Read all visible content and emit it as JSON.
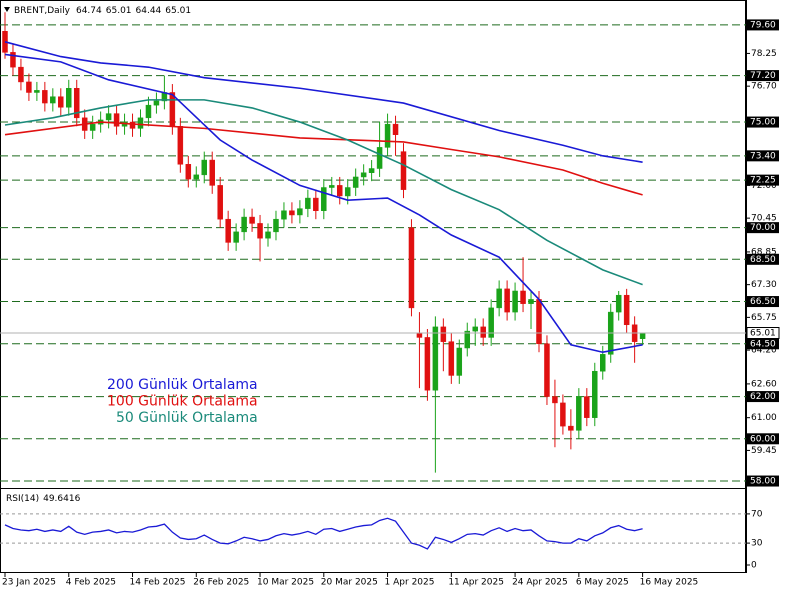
{
  "chart_data": [
    {
      "type": "candlestick",
      "title": "BRENT,Daily",
      "categories": [
        "23 Jan 2025",
        null,
        null,
        null,
        null,
        null,
        null,
        null,
        "4 Feb 2025",
        null,
        null,
        null,
        null,
        null,
        null,
        null,
        "14 Feb 2025",
        null,
        null,
        null,
        null,
        null,
        null,
        null,
        "26 Feb 2025",
        null,
        null,
        null,
        null,
        null,
        null,
        null,
        "10 Mar 2025",
        null,
        null,
        null,
        null,
        null,
        null,
        null,
        "20 Mar 2025",
        null,
        null,
        null,
        null,
        null,
        null,
        null,
        "1 Apr 2025",
        null,
        null,
        null,
        null,
        null,
        null,
        null,
        "11 Apr 2025",
        null,
        null,
        null,
        null,
        null,
        null,
        null,
        "24 Apr 2025",
        null,
        null,
        null,
        null,
        null,
        null,
        null,
        "6 May 2025",
        null,
        null,
        null,
        null,
        null,
        null,
        null,
        "16 May 2025"
      ],
      "open": [
        79.3,
        78.3,
        77.6,
        76.9,
        76.4,
        76.5,
        75.9,
        76.2,
        75.7,
        76.6,
        75.2,
        74.6,
        74.9,
        75.1,
        75.4,
        74.8,
        75.0,
        74.7,
        75.2,
        75.8,
        76.0,
        76.4,
        74.8,
        73.0,
        72.3,
        72.5,
        73.2,
        72.0,
        70.4,
        69.3,
        69.8,
        70.5,
        70.2,
        69.5,
        69.8,
        70.4,
        70.8,
        70.6,
        70.9,
        71.4,
        70.8,
        71.9,
        72.0,
        71.5,
        71.9,
        72.4,
        72.6,
        72.8,
        73.8,
        74.9,
        73.6,
        70.0,
        65.0,
        64.8,
        62.3,
        65.3,
        64.6,
        63.0,
        64.3,
        65.1,
        65.3,
        64.8,
        66.2,
        67.1,
        66.0,
        67.0,
        66.4,
        66.6,
        64.5,
        62.0,
        61.7,
        60.6,
        60.4,
        62.0,
        61.0,
        63.2,
        64.0,
        66.0,
        66.8,
        65.4,
        64.74
      ],
      "high": [
        80.2,
        78.7,
        78.0,
        77.3,
        76.9,
        76.9,
        76.6,
        76.6,
        77.0,
        77.0,
        75.6,
        75.3,
        75.5,
        75.8,
        75.8,
        75.4,
        75.4,
        75.6,
        76.2,
        76.4,
        77.2,
        76.8,
        75.2,
        73.4,
        72.9,
        73.6,
        73.6,
        72.4,
        70.8,
        70.2,
        70.9,
        70.9,
        70.6,
        70.2,
        70.8,
        71.2,
        71.2,
        71.3,
        71.8,
        71.8,
        72.3,
        72.4,
        72.4,
        72.3,
        72.8,
        73.0,
        73.2,
        75.0,
        75.4,
        75.3,
        74.0,
        70.4,
        66.0,
        65.2,
        65.8,
        65.7,
        65.0,
        64.7,
        65.5,
        65.7,
        65.7,
        66.6,
        67.5,
        67.5,
        67.4,
        68.6,
        67.0,
        67.0,
        64.9,
        62.8,
        62.1,
        61.4,
        62.4,
        62.4,
        63.6,
        64.4,
        66.4,
        67.0,
        67.1,
        65.8,
        65.01
      ],
      "low": [
        78.0,
        77.2,
        76.5,
        76.0,
        76.0,
        75.5,
        75.5,
        75.3,
        75.3,
        74.8,
        74.2,
        74.2,
        74.5,
        74.7,
        74.4,
        74.4,
        74.3,
        74.3,
        74.8,
        75.4,
        75.6,
        74.4,
        72.6,
        71.9,
        71.9,
        72.1,
        71.6,
        70.0,
        68.9,
        68.9,
        69.4,
        69.8,
        68.4,
        69.1,
        69.4,
        70.0,
        70.2,
        70.2,
        70.5,
        70.4,
        70.4,
        71.5,
        71.1,
        71.1,
        71.5,
        72.0,
        72.2,
        72.4,
        73.4,
        73.4,
        71.4,
        65.8,
        62.4,
        61.8,
        58.4,
        63.2,
        62.6,
        62.6,
        63.9,
        64.4,
        64.4,
        64.4,
        65.8,
        65.6,
        65.6,
        66.0,
        65.2,
        64.1,
        61.6,
        59.6,
        60.2,
        59.5,
        60.0,
        60.6,
        60.6,
        62.8,
        63.6,
        65.6,
        65.0,
        63.6,
        64.44
      ],
      "close": [
        78.3,
        77.6,
        76.9,
        76.4,
        76.5,
        75.9,
        76.2,
        75.7,
        76.6,
        75.2,
        74.6,
        74.9,
        75.1,
        75.4,
        74.8,
        75.0,
        74.7,
        75.2,
        75.8,
        76.0,
        76.4,
        74.8,
        73.0,
        72.3,
        72.5,
        73.2,
        72.0,
        70.4,
        69.3,
        69.8,
        70.5,
        70.2,
        69.5,
        69.8,
        70.4,
        70.8,
        70.6,
        70.9,
        71.4,
        70.8,
        71.9,
        72.0,
        71.5,
        71.9,
        72.4,
        72.6,
        72.8,
        73.8,
        74.9,
        74.4,
        71.8,
        66.2,
        64.8,
        62.3,
        65.3,
        64.6,
        63.0,
        64.3,
        65.1,
        65.3,
        64.8,
        66.2,
        67.1,
        66.0,
        67.0,
        66.4,
        66.6,
        64.5,
        62.0,
        61.7,
        60.6,
        60.4,
        62.0,
        61.0,
        63.2,
        64.0,
        66.0,
        66.8,
        65.4,
        64.6,
        65.01
      ],
      "up_color": "#1aa31a",
      "down_color": "#e01010",
      "ylim": [
        57.67,
        80.78
      ],
      "yticks": [
        78.25,
        {
          "value": 76.7,
          "label": "76.70"
        },
        {
          "value": 72,
          "label": "72.00"
        },
        70.45,
        68.85,
        {
          "value": 67.3,
          "label": "67.30"
        },
        65.75,
        {
          "value": 64.2,
          "label": "64.20"
        },
        {
          "value": 62.6,
          "label": "62.60"
        },
        {
          "value": 61,
          "label": "61.00"
        },
        59.45
      ],
      "levels": [
        {
          "value": 79.6,
          "label": "79.60"
        },
        {
          "value": 77.2,
          "label": "77.20"
        },
        {
          "value": 75,
          "label": "75.00"
        },
        {
          "value": 73.4,
          "label": "73.40"
        },
        72.25,
        {
          "value": 70,
          "label": "70.00"
        },
        {
          "value": 68.5,
          "label": "68.50"
        },
        {
          "value": 66.5,
          "label": "66.50"
        },
        {
          "value": 64.5,
          "label": "64.50"
        },
        {
          "value": 62,
          "label": "62.00"
        },
        {
          "value": 60,
          "label": "60.00"
        },
        {
          "value": 58,
          "label": "58.00"
        }
      ],
      "level_color": "#1e6b1e",
      "series": [
        {
          "name": "200 Günlük Ortalama",
          "color": "#1a1ad6",
          "x": [
            0,
            7,
            12,
            18,
            25,
            37,
            50,
            62,
            70,
            75,
            80
          ],
          "values": [
            78.8,
            78.1,
            77.8,
            77.6,
            77.1,
            76.6,
            75.9,
            74.6,
            73.9,
            73.4,
            73.1
          ]
        },
        {
          "name": "100 Günlük Ortalama",
          "color": "#e01010",
          "x": [
            0,
            12,
            25,
            37,
            50,
            56,
            62,
            70,
            75,
            80
          ],
          "values": [
            74.4,
            75.0,
            74.7,
            74.25,
            74.06,
            73.7,
            73.35,
            72.73,
            72.1,
            71.55
          ]
        },
        {
          "name": "50 Günlük Ortalama",
          "color": "#1a8a7a",
          "x": [
            0,
            6,
            12,
            18,
            25,
            31,
            37,
            43,
            50,
            56,
            62,
            68,
            75,
            80
          ],
          "values": [
            74.86,
            75.2,
            75.67,
            76.05,
            76.05,
            75.67,
            75.0,
            74.15,
            72.97,
            71.8,
            70.85,
            69.4,
            68.0,
            67.3
          ]
        },
        {
          "color": "#1a1ad6",
          "x": [
            0,
            7,
            13,
            21,
            27,
            31,
            37,
            43,
            48,
            52,
            56,
            62,
            67,
            71,
            75,
            80
          ],
          "values": [
            78.2,
            77.85,
            77.0,
            76.3,
            74.15,
            73.2,
            72.0,
            71.3,
            71.4,
            70.6,
            69.65,
            68.6,
            66.6,
            64.45,
            64.1,
            64.45
          ]
        }
      ]
    },
    {
      "type": "line",
      "title": "RSI(14)",
      "color": "#1a1ad6",
      "values": [
        55,
        50,
        48,
        47,
        49,
        46,
        48,
        46,
        53,
        45,
        42,
        45,
        46,
        48,
        44,
        46,
        45,
        48,
        52,
        53,
        56,
        45,
        37,
        35,
        36,
        41,
        35,
        30,
        29,
        33,
        38,
        36,
        33,
        35,
        40,
        43,
        41,
        43,
        46,
        42,
        49,
        50,
        46,
        49,
        52,
        54,
        55,
        61,
        64,
        60,
        45,
        30,
        27,
        22,
        38,
        35,
        31,
        36,
        42,
        43,
        41,
        47,
        51,
        46,
        50,
        47,
        48,
        40,
        33,
        32,
        30,
        30,
        36,
        33,
        40,
        44,
        51,
        54,
        49,
        47,
        49.6416
      ],
      "ylim": [
        0,
        100
      ],
      "yticks": [
        70,
        30,
        0
      ]
    }
  ]
}
